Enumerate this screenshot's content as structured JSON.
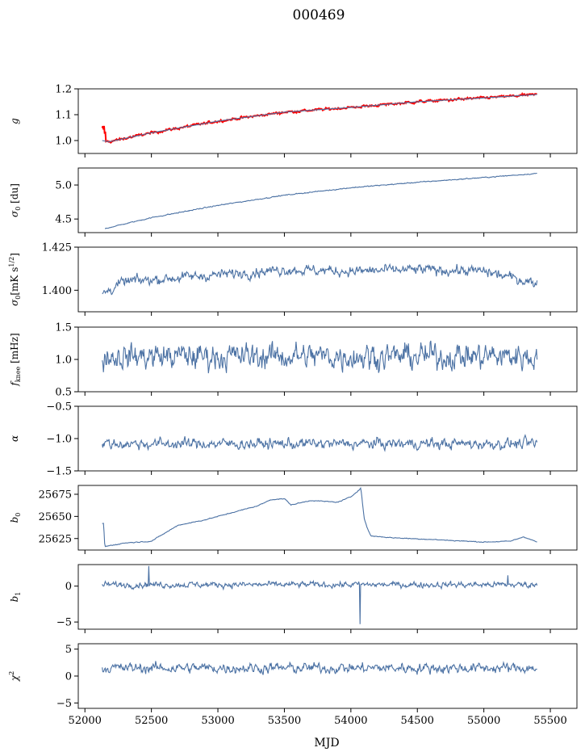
{
  "figure": {
    "title": "000469",
    "xlabel": "MJD"
  },
  "colors": {
    "series": "#4c72a4",
    "highlight": "#ff0000",
    "axes": "#000000"
  },
  "chart_data": [
    {
      "type": "line",
      "ylabel": "g",
      "xlim": [
        51950,
        55700
      ],
      "ylim": [
        0.95,
        1.2
      ],
      "yticks": [
        1.0,
        1.1,
        1.2
      ],
      "ytick_labels": [
        "1.0",
        "1.1",
        "1.2"
      ],
      "trend": {
        "x": [
          52130,
          52180,
          52500,
          53000,
          53500,
          54000,
          54500,
          55000,
          55400
        ],
        "y": [
          1.0,
          0.995,
          1.03,
          1.075,
          1.11,
          1.128,
          1.15,
          1.165,
          1.178
        ]
      },
      "noise": 0.004,
      "overlay_trend": true,
      "start_spike": 1.065
    },
    {
      "type": "line",
      "ylabel": "σ₀ [du]",
      "xlim": [
        51950,
        55700
      ],
      "ylim": [
        4.3,
        5.25
      ],
      "yticks": [
        4.5,
        5.0
      ],
      "ytick_labels": [
        "4.5",
        "5.0"
      ],
      "trend": {
        "x": [
          52150,
          52500,
          53000,
          53500,
          54000,
          54500,
          55000,
          55400
        ],
        "y": [
          4.36,
          4.52,
          4.7,
          4.85,
          4.96,
          5.04,
          5.11,
          5.17
        ]
      },
      "noise": 0.006
    },
    {
      "type": "line",
      "ylabel": "σ₀[mK s^1/2]",
      "xlim": [
        51950,
        55700
      ],
      "ylim": [
        1.3875,
        1.425
      ],
      "yticks": [
        1.4,
        1.425
      ],
      "ytick_labels": [
        "1.400",
        "1.425"
      ],
      "trend": {
        "x": [
          52130,
          52300,
          53000,
          53500,
          54000,
          54500,
          55000,
          55400
        ],
        "y": [
          1.398,
          1.405,
          1.409,
          1.412,
          1.411,
          1.412,
          1.411,
          1.404
        ]
      },
      "noise": 0.0025
    },
    {
      "type": "line",
      "ylabel": "f_knee [mHz]",
      "xlim": [
        51950,
        55700
      ],
      "ylim": [
        0.5,
        1.5
      ],
      "yticks": [
        0.5,
        1.0,
        1.5
      ],
      "ytick_labels": [
        "0.5",
        "1.0",
        "1.5"
      ],
      "trend": {
        "x": [
          52130,
          55400
        ],
        "y": [
          1.05,
          1.05
        ]
      },
      "noise": 0.17
    },
    {
      "type": "line",
      "ylabel": "α",
      "xlim": [
        51950,
        55700
      ],
      "ylim": [
        -1.5,
        -0.5
      ],
      "yticks": [
        -1.5,
        -1.0,
        -0.5
      ],
      "ytick_labels": [
        "−1.5",
        "−1.0",
        "−0.5"
      ],
      "trend": {
        "x": [
          52130,
          55400
        ],
        "y": [
          -1.08,
          -1.08
        ]
      },
      "noise": 0.07
    },
    {
      "type": "line",
      "ylabel": "b₀",
      "xlim": [
        51950,
        55700
      ],
      "ylim": [
        25612,
        25685
      ],
      "yticks": [
        25625,
        25650,
        25675
      ],
      "ytick_labels": [
        "25625",
        "25650",
        "25675"
      ],
      "trend": {
        "x": [
          52130,
          52140,
          52150,
          52300,
          52500,
          52700,
          52900,
          53100,
          53300,
          53400,
          53500,
          53550,
          53700,
          53900,
          54000,
          54075,
          54100,
          54120,
          54150,
          54300,
          54600,
          55000,
          55200,
          55300,
          55400
        ],
        "y": [
          25642,
          25642,
          25616,
          25620,
          25622,
          25640,
          25646,
          25654,
          25662,
          25669,
          25670,
          25663,
          25668,
          25666,
          25672,
          25682,
          25648,
          25638,
          25628,
          25626,
          25624,
          25621,
          25622,
          25627,
          25621
        ]
      },
      "noise": 0.4
    },
    {
      "type": "line",
      "ylabel": "b₁",
      "xlim": [
        51950,
        55700
      ],
      "ylim": [
        -6,
        3
      ],
      "yticks": [
        -5,
        0
      ],
      "ytick_labels": [
        "−5",
        "0"
      ],
      "trend": {
        "x": [
          52130,
          55400
        ],
        "y": [
          0.2,
          0.2
        ]
      },
      "noise": 0.35,
      "spikes": [
        {
          "x": 52480,
          "y": 2.8
        },
        {
          "x": 54070,
          "y": -5.3
        },
        {
          "x": 55180,
          "y": 1.5
        }
      ]
    },
    {
      "type": "line",
      "ylabel": "χ²",
      "xlim": [
        51950,
        55700
      ],
      "ylim": [
        -6,
        6
      ],
      "yticks": [
        -5,
        0,
        5
      ],
      "ytick_labels": [
        "−5",
        "0",
        "5"
      ],
      "trend": {
        "x": [
          52130,
          55400
        ],
        "y": [
          1.5,
          1.5
        ]
      },
      "noise": 0.8
    }
  ],
  "xticks": [
    52000,
    52500,
    53000,
    53500,
    54000,
    54500,
    55000,
    55500
  ],
  "xtick_labels": [
    "52000",
    "52500",
    "53000",
    "53500",
    "54000",
    "54500",
    "55000",
    "55500"
  ]
}
